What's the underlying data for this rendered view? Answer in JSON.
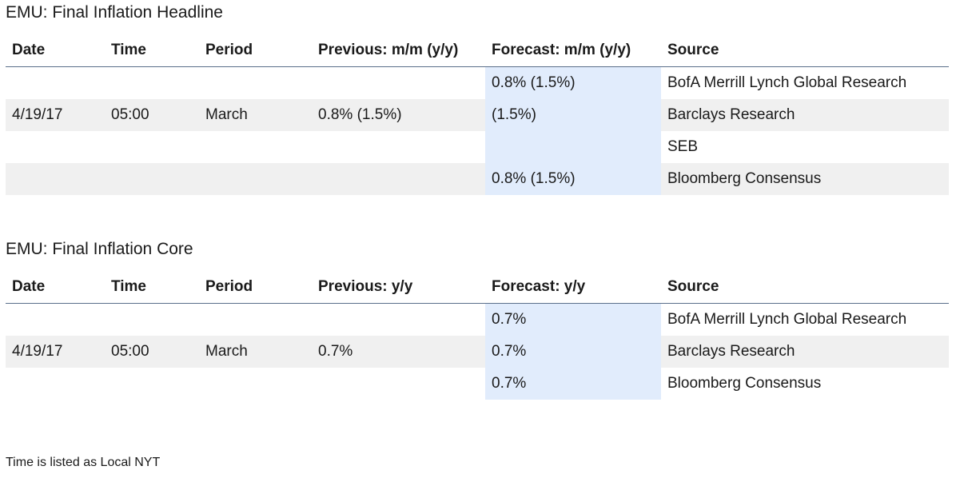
{
  "headline": {
    "title": "EMU: Final Inflation Headline",
    "columns": [
      "Date",
      "Time",
      "Period",
      "Previous: m/m (y/y)",
      "Forecast: m/m (y/y)",
      "Source"
    ],
    "rows": [
      {
        "date": "",
        "time": "",
        "period": "",
        "previous": "",
        "forecast": "0.8% (1.5%)",
        "source": "BofA Merrill Lynch Global Research"
      },
      {
        "date": "4/19/17",
        "time": "05:00",
        "period": "March",
        "previous": "0.8% (1.5%)",
        "forecast": "(1.5%)",
        "source": "Barclays Research"
      },
      {
        "date": "",
        "time": "",
        "period": "",
        "previous": "",
        "forecast": "",
        "source": "SEB"
      },
      {
        "date": "",
        "time": "",
        "period": "",
        "previous": "",
        "forecast": "0.8% (1.5%)",
        "source": "Bloomberg Consensus"
      }
    ]
  },
  "core": {
    "title": "EMU: Final Inflation Core",
    "columns": [
      "Date",
      "Time",
      "Period",
      "Previous: y/y",
      "Forecast: y/y",
      "Source"
    ],
    "rows": [
      {
        "date": "",
        "time": "",
        "period": "",
        "previous": "",
        "forecast": "0.7%",
        "source": "BofA Merrill Lynch Global Research"
      },
      {
        "date": "4/19/17",
        "time": "05:00",
        "period": "March",
        "previous": "0.7%",
        "forecast": "0.7%",
        "source": "Barclays Research"
      },
      {
        "date": "",
        "time": "",
        "period": "",
        "previous": "",
        "forecast": "0.7%",
        "source": "Bloomberg Consensus"
      }
    ]
  },
  "footer": {
    "note": "Time is listed as Local NYT"
  },
  "colors": {
    "forecast_highlight": "#e1ecfc",
    "alt_row": "#f0f0f0",
    "header_rule": "#5a6f8a"
  }
}
